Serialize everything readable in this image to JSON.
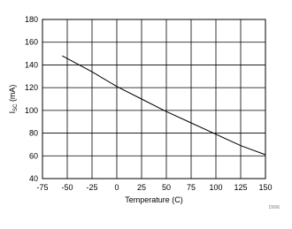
{
  "chart_data": {
    "type": "line",
    "xlabel": "Temperature (C)",
    "ylabel": {
      "main": "I",
      "sub": "SC",
      "unit": " (mA)"
    },
    "note": "D006",
    "x": [
      -55,
      -25,
      0,
      25,
      50,
      75,
      100,
      125,
      150
    ],
    "series": [
      {
        "name": "ISC",
        "color": "#000000",
        "values": [
          148,
          134,
          121,
          110,
          99,
          89,
          79,
          69,
          61
        ]
      }
    ],
    "xlim": [
      -75,
      150
    ],
    "xticks": [
      -75,
      -50,
      -25,
      0,
      25,
      50,
      75,
      100,
      125,
      150
    ],
    "ylim": [
      40,
      180
    ],
    "yticks": [
      40,
      60,
      80,
      100,
      120,
      140,
      160,
      180
    ],
    "grid": true,
    "legend": false
  }
}
